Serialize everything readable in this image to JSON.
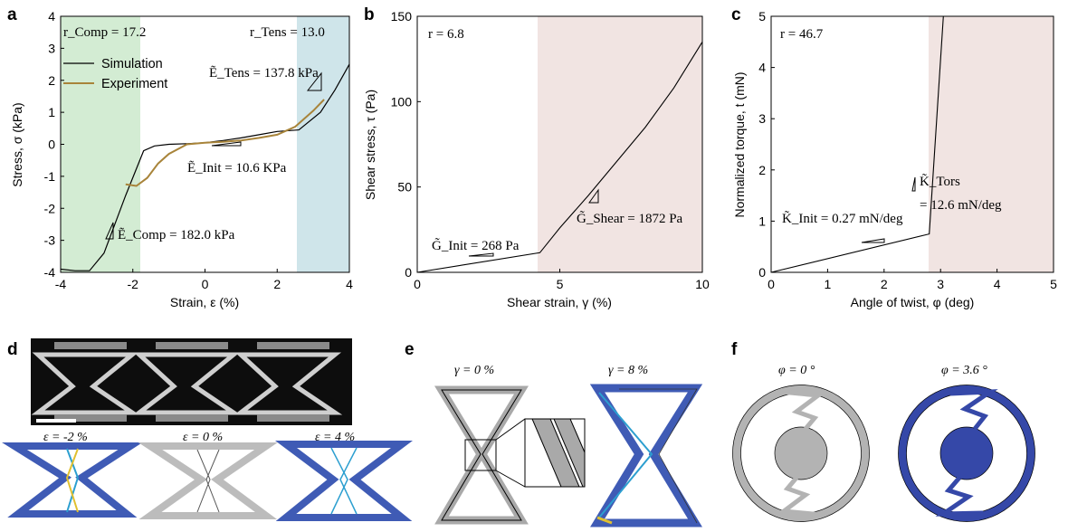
{
  "figure": {
    "panel_labels": [
      "a",
      "b",
      "c",
      "d",
      "e",
      "f"
    ]
  },
  "panel_a": {
    "xlabel": "Strain, ε (%)",
    "ylabel": "Stress, σ (kPa)",
    "r_comp": "r_Comp = 17.2",
    "r_tens": "r_Tens = 13.0",
    "legend": [
      "Simulation",
      "Experiment"
    ],
    "e_tens": "Ẽ_Tens = 137.8 kPa",
    "e_init": "Ẽ_Init = 10.6 KPa",
    "e_comp": "Ẽ_Comp = 182.0 kPa",
    "colors": {
      "comp_region": "#d3ecd3",
      "tens_region": "#cfe5ea",
      "experiment": "#a8843a",
      "simulation": "#000000"
    }
  },
  "panel_b": {
    "xlabel": "Shear strain, γ (%)",
    "ylabel": "Shear stress, τ (Pa)",
    "r": "r = 6.8",
    "g_init": "G̃_Init = 268 Pa",
    "g_shear": "G̃_Shear = 1872 Pa",
    "colors": {
      "region": "#f1e4e2"
    }
  },
  "panel_c": {
    "xlabel": "Angle of twist, φ (deg)",
    "ylabel": "Normalized torque, t (mN)",
    "r": "r = 46.7",
    "k_init": "K̃_Init = 0.27 mN/deg",
    "k_tors_sym": "K̃_Tors",
    "k_tors_val": "= 12.6 mN/deg",
    "colors": {
      "region": "#f1e4e2"
    }
  },
  "panel_d": {
    "labels": [
      "ε = -2 %",
      "ε = 0 %",
      "ε = 4 %"
    ]
  },
  "panel_e": {
    "labels": [
      "γ = 0 %",
      "γ = 8 %"
    ]
  },
  "panel_f": {
    "labels": [
      "φ = 0 °",
      "φ = 3.6 °"
    ]
  },
  "chart_data": [
    {
      "type": "line",
      "title": "",
      "xlabel": "Strain, ε (%)",
      "ylabel": "Stress, σ (kPa)",
      "xlim": [
        -4,
        4
      ],
      "ylim": [
        -4,
        4
      ],
      "xticks": [
        -4,
        -2,
        0,
        2,
        4
      ],
      "yticks": [
        -4,
        -3,
        -2,
        -1,
        0,
        1,
        2,
        3,
        4
      ],
      "shaded_regions": [
        {
          "x": [
            -4,
            -1.7
          ],
          "color": "#d3ecd3"
        },
        {
          "x": [
            2.6,
            4
          ],
          "color": "#cfe5ea"
        }
      ],
      "series": [
        {
          "name": "Simulation",
          "x": [
            -4,
            -3.6,
            -3.2,
            -2.8,
            -2.2,
            -1.7,
            -1.4,
            -1.0,
            -0.5,
            0,
            0.5,
            1.0,
            1.5,
            2.0,
            2.6,
            3.2,
            3.6,
            4.0
          ],
          "y": [
            -3.9,
            -3.95,
            -3.95,
            -3.4,
            -1.6,
            -0.2,
            -0.05,
            0.0,
            0.02,
            0.05,
            0.12,
            0.2,
            0.3,
            0.4,
            0.45,
            1.0,
            1.7,
            2.5
          ]
        },
        {
          "name": "Experiment",
          "x": [
            -2.2,
            -1.9,
            -1.6,
            -1.3,
            -1.0,
            -0.5,
            0,
            0.5,
            1.0,
            1.5,
            2.0,
            2.5,
            3.0,
            3.3
          ],
          "y": [
            -1.25,
            -1.3,
            -1.05,
            -0.6,
            -0.3,
            0.0,
            0.05,
            0.08,
            0.12,
            0.2,
            0.3,
            0.55,
            1.05,
            1.4
          ]
        }
      ]
    },
    {
      "type": "line",
      "title": "",
      "xlabel": "Shear strain, γ (%)",
      "ylabel": "Shear stress, τ (Pa)",
      "xlim": [
        0,
        10
      ],
      "ylim": [
        0,
        150
      ],
      "xticks": [
        0,
        5,
        10
      ],
      "yticks": [
        0,
        50,
        100,
        150
      ],
      "shaded_regions": [
        {
          "x": [
            4.3,
            10
          ],
          "color": "#f1e4e2"
        }
      ],
      "series": [
        {
          "x": [
            0,
            4.3,
            5,
            6,
            7,
            8,
            9,
            10
          ],
          "y": [
            0,
            11.5,
            26,
            45,
            65,
            85,
            108,
            135
          ]
        }
      ]
    },
    {
      "type": "line",
      "title": "",
      "xlabel": "Angle of twist, φ (deg)",
      "ylabel": "Normalized torque, t (mN)",
      "xlim": [
        0,
        5
      ],
      "ylim": [
        0,
        5
      ],
      "xticks": [
        0,
        1,
        2,
        3,
        4,
        5
      ],
      "yticks": [
        0,
        1,
        2,
        3,
        4,
        5
      ],
      "shaded_regions": [
        {
          "x": [
            2.8,
            5
          ],
          "color": "#f1e4e2"
        }
      ],
      "series": [
        {
          "x": [
            0,
            2.8,
            3.05
          ],
          "y": [
            0,
            0.75,
            5
          ]
        }
      ]
    }
  ]
}
